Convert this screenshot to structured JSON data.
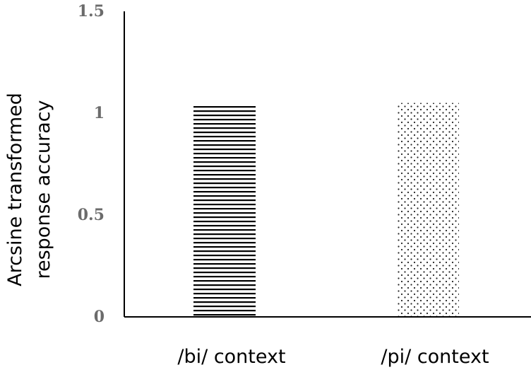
{
  "chart_data": {
    "type": "bar",
    "categories": [
      "/bi/ context",
      "/pi/ context"
    ],
    "values": [
      1.04,
      1.05
    ],
    "ylabel": [
      "Arcsine transformed",
      "response accuracy"
    ],
    "yticks": [
      "0",
      "0.5",
      "1",
      "1.5"
    ],
    "ytick_values": [
      0,
      0.5,
      1,
      1.5
    ],
    "ylim": [
      0,
      1.5
    ],
    "grid": false,
    "legend": "none",
    "fill_patterns": [
      "horizontal-lines",
      "dots"
    ],
    "colors": {
      "bar_stroke": "#000000",
      "axis": "#000000",
      "tick_text": "#6b6b6b"
    }
  }
}
